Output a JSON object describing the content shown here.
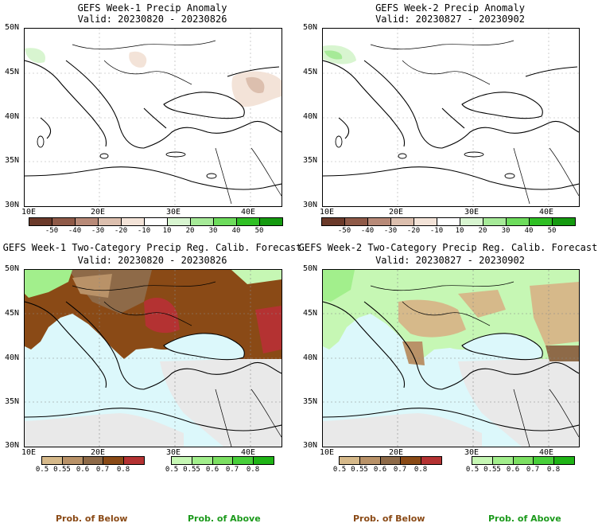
{
  "chart_data": [
    {
      "type": "heatmap",
      "title": "GEFS Week-1 Precip Anomaly",
      "subtitle": "Valid: 20230820 - 20230826",
      "xticks": [
        "10E",
        "20E",
        "30E",
        "40E"
      ],
      "yticks": [
        "50N",
        "45N",
        "40N",
        "35N",
        "30N"
      ],
      "xlim": [
        10,
        44
      ],
      "ylim": [
        30,
        50
      ],
      "colorbar": [
        "-50",
        "-40",
        "-30",
        "-20",
        "-10",
        "10",
        "20",
        "30",
        "40",
        "50"
      ]
    },
    {
      "type": "heatmap",
      "title": "GEFS Week-2 Precip Anomaly",
      "subtitle": "Valid: 20230827 - 20230902",
      "xticks": [
        "10E",
        "20E",
        "30E",
        "40E"
      ],
      "yticks": [
        "50N",
        "45N",
        "40N",
        "35N",
        "30N"
      ],
      "xlim": [
        10,
        44
      ],
      "ylim": [
        30,
        50
      ],
      "colorbar": [
        "-50",
        "-40",
        "-30",
        "-20",
        "-10",
        "10",
        "20",
        "30",
        "40",
        "50"
      ]
    },
    {
      "type": "heatmap",
      "title": "GEFS Week-1 Two-Category Precip Reg. Calib. Forecast",
      "subtitle": "Valid: 20230820 - 20230826",
      "xticks": [
        "10E",
        "20E",
        "30E",
        "40E"
      ],
      "yticks": [
        "50N",
        "45N",
        "40N",
        "35N",
        "30N"
      ],
      "xlim": [
        10,
        44
      ],
      "ylim": [
        30,
        50
      ],
      "below_colorbar": [
        "0.5",
        "0.55",
        "0.6",
        "0.7",
        "0.8"
      ],
      "above_colorbar": [
        "0.5",
        "0.55",
        "0.6",
        "0.7",
        "0.8"
      ]
    },
    {
      "type": "heatmap",
      "title": "GEFS Week-2 Two-Category Precip Reg. Calib. Forecast",
      "subtitle": "Valid: 20230827 - 20230902",
      "xticks": [
        "10E",
        "20E",
        "30E",
        "40E"
      ],
      "yticks": [
        "50N",
        "45N",
        "40N",
        "35N",
        "30N"
      ],
      "xlim": [
        10,
        44
      ],
      "ylim": [
        30,
        50
      ],
      "below_colorbar": [
        "0.5",
        "0.55",
        "0.6",
        "0.7",
        "0.8"
      ],
      "above_colorbar": [
        "0.5",
        "0.55",
        "0.6",
        "0.7",
        "0.8"
      ]
    }
  ],
  "legend": {
    "below": "Prob. of Below",
    "above": "Prob. of Above"
  },
  "colors": {
    "anomaly_scale": [
      "#6b3a2a",
      "#8f5a48",
      "#b88a78",
      "#dcbfae",
      "#f3e3d8",
      "#ffffff",
      "#d8f5d0",
      "#a6ea98",
      "#6ddc5c",
      "#2fbf24",
      "#159a10"
    ],
    "below_scale": [
      "#d6b98a",
      "#b99268",
      "#8e6a48",
      "#8a4a16",
      "#b43232"
    ],
    "above_scale": [
      "#c6f7b4",
      "#a2ef8c",
      "#7ce062",
      "#48d03a",
      "#1fb416"
    ],
    "sea_fill": "#dcf8fb",
    "missing_fill": "#e9e9e9",
    "below_label": "#8a4a16",
    "above_label": "#1c9a1c"
  }
}
